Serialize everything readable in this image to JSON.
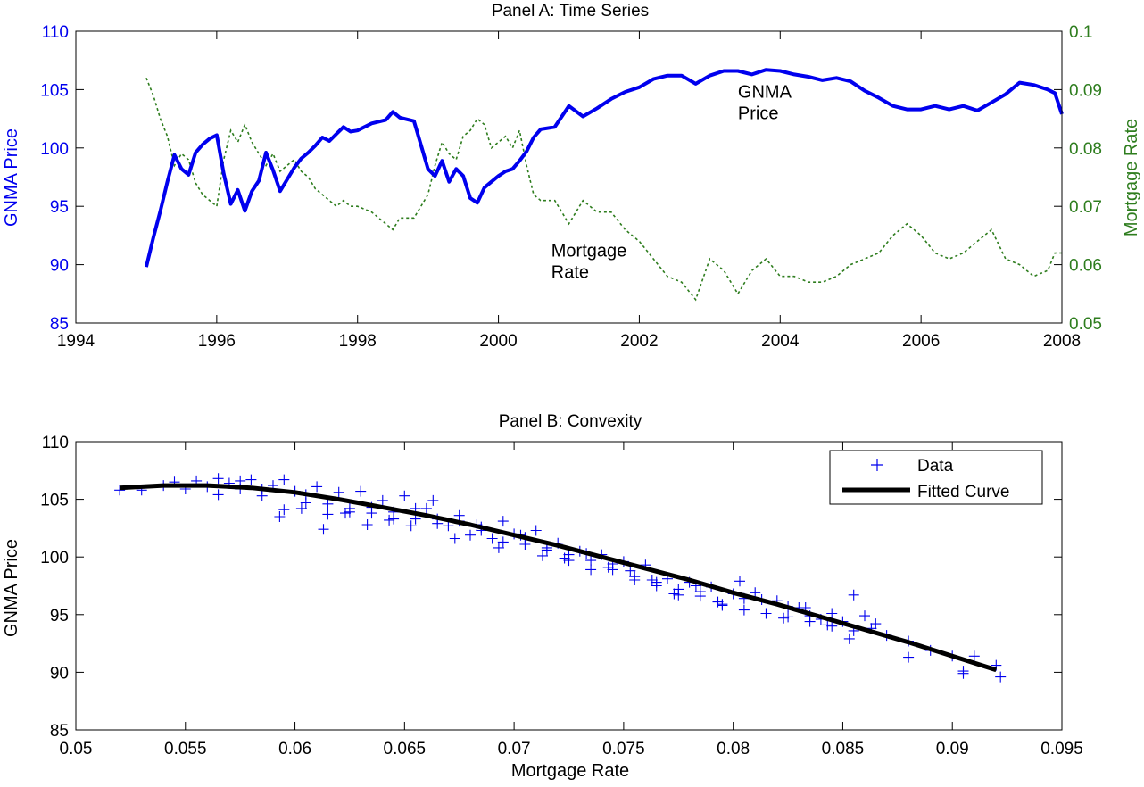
{
  "colors": {
    "price": "#0000ee",
    "rate": "#2e7d1e",
    "fit": "#000000",
    "axis": "#000000"
  },
  "chart_data": [
    {
      "type": "line",
      "title": "Panel A: Time Series",
      "xlabel": "",
      "ylabel_left": "GNMA Price",
      "ylabel_right": "Mortgage Rate",
      "xlim": [
        1994,
        2008
      ],
      "ylim_left": [
        85,
        110
      ],
      "ylim_right": [
        0.05,
        0.1
      ],
      "xticks": [
        "1994",
        "1996",
        "1998",
        "2000",
        "2002",
        "2004",
        "2006",
        "2008"
      ],
      "yticks_left": [
        "85",
        "90",
        "95",
        "100",
        "105",
        "110"
      ],
      "yticks_right": [
        "0.05",
        "0.06",
        "0.07",
        "0.08",
        "0.09",
        "0.1"
      ],
      "grid": false,
      "annotations": [
        {
          "text": [
            "GNMA",
            "Price"
          ],
          "x": 2003.4,
          "y": 104.3,
          "axis": "left"
        },
        {
          "text": [
            "Mortgage",
            "Rate"
          ],
          "x": 2000.75,
          "y": 90.7,
          "axis": "left"
        }
      ],
      "series": [
        {
          "axis": "left",
          "x": [
            1995.0,
            1995.1,
            1995.2,
            1995.3,
            1995.4,
            1995.5,
            1995.6,
            1995.7,
            1995.8,
            1995.9,
            1996.0,
            1996.1,
            1996.2,
            1996.3,
            1996.4,
            1996.5,
            1996.6,
            1996.7,
            1996.8,
            1996.9,
            1997.0,
            1997.1,
            1997.2,
            1997.3,
            1997.4,
            1997.5,
            1997.6,
            1997.7,
            1997.8,
            1997.9,
            1998.0,
            1998.2,
            1998.4,
            1998.5,
            1998.6,
            1998.8,
            1999.0,
            1999.1,
            1999.2,
            1999.3,
            1999.4,
            1999.5,
            1999.6,
            1999.7,
            1999.8,
            1999.9,
            2000.0,
            2000.1,
            2000.2,
            2000.3,
            2000.4,
            2000.5,
            2000.6,
            2000.8,
            2001.0,
            2001.2,
            2001.4,
            2001.6,
            2001.8,
            2002.0,
            2002.2,
            2002.4,
            2002.6,
            2002.8,
            2003.0,
            2003.2,
            2003.4,
            2003.6,
            2003.8,
            2004.0,
            2004.2,
            2004.4,
            2004.6,
            2004.8,
            2005.0,
            2005.2,
            2005.4,
            2005.6,
            2005.8,
            2006.0,
            2006.2,
            2006.4,
            2006.6,
            2006.8,
            2007.0,
            2007.2,
            2007.4,
            2007.6,
            2007.8,
            2007.9,
            2008.0
          ],
          "values": [
            89.8,
            92.3,
            94.6,
            97.1,
            99.4,
            98.2,
            97.7,
            99.6,
            100.3,
            100.8,
            101.1,
            97.8,
            95.2,
            96.4,
            94.6,
            96.3,
            97.2,
            99.6,
            98.1,
            96.3,
            97.3,
            98.3,
            99.1,
            99.6,
            100.2,
            100.9,
            100.6,
            101.2,
            101.8,
            101.4,
            101.5,
            102.1,
            102.4,
            103.1,
            102.6,
            102.3,
            98.2,
            97.6,
            98.9,
            97.1,
            98.2,
            97.6,
            95.7,
            95.3,
            96.6,
            97.1,
            97.6,
            98.0,
            98.2,
            98.9,
            99.7,
            100.9,
            101.6,
            101.8,
            103.6,
            102.7,
            103.4,
            104.2,
            104.8,
            105.2,
            105.9,
            106.2,
            106.2,
            105.5,
            106.2,
            106.6,
            106.6,
            106.3,
            106.7,
            106.6,
            106.3,
            106.1,
            105.8,
            106.0,
            105.7,
            104.9,
            104.3,
            103.6,
            103.3,
            103.3,
            103.6,
            103.3,
            103.6,
            103.2,
            103.9,
            104.6,
            105.6,
            105.4,
            105.0,
            104.7,
            102.9
          ]
        },
        {
          "axis": "right",
          "x": [
            1995.0,
            1995.1,
            1995.2,
            1995.3,
            1995.4,
            1995.5,
            1995.6,
            1995.7,
            1995.8,
            1995.9,
            1996.0,
            1996.1,
            1996.2,
            1996.3,
            1996.4,
            1996.5,
            1996.6,
            1996.7,
            1996.8,
            1996.9,
            1997.0,
            1997.1,
            1997.2,
            1997.3,
            1997.4,
            1997.5,
            1997.6,
            1997.7,
            1997.8,
            1997.9,
            1998.0,
            1998.2,
            1998.4,
            1998.5,
            1998.6,
            1998.8,
            1999.0,
            1999.1,
            1999.2,
            1999.3,
            1999.4,
            1999.5,
            1999.6,
            1999.7,
            1999.8,
            1999.9,
            2000.0,
            2000.1,
            2000.2,
            2000.3,
            2000.4,
            2000.5,
            2000.6,
            2000.8,
            2001.0,
            2001.2,
            2001.4,
            2001.6,
            2001.8,
            2002.0,
            2002.2,
            2002.4,
            2002.6,
            2002.8,
            2003.0,
            2003.2,
            2003.4,
            2003.6,
            2003.8,
            2004.0,
            2004.2,
            2004.4,
            2004.6,
            2004.8,
            2005.0,
            2005.2,
            2005.4,
            2005.6,
            2005.8,
            2006.0,
            2006.2,
            2006.4,
            2006.6,
            2006.8,
            2007.0,
            2007.2,
            2007.4,
            2007.6,
            2007.8,
            2007.9,
            2008.0
          ],
          "values": [
            0.092,
            0.089,
            0.085,
            0.082,
            0.077,
            0.079,
            0.078,
            0.074,
            0.072,
            0.071,
            0.07,
            0.078,
            0.083,
            0.081,
            0.084,
            0.081,
            0.079,
            0.077,
            0.079,
            0.076,
            0.077,
            0.078,
            0.076,
            0.075,
            0.073,
            0.072,
            0.071,
            0.07,
            0.071,
            0.07,
            0.07,
            0.069,
            0.067,
            0.066,
            0.068,
            0.068,
            0.072,
            0.077,
            0.081,
            0.079,
            0.078,
            0.082,
            0.083,
            0.085,
            0.084,
            0.08,
            0.081,
            0.082,
            0.08,
            0.083,
            0.077,
            0.072,
            0.071,
            0.071,
            0.067,
            0.071,
            0.069,
            0.069,
            0.066,
            0.064,
            0.061,
            0.058,
            0.057,
            0.054,
            0.061,
            0.059,
            0.055,
            0.059,
            0.061,
            0.058,
            0.058,
            0.057,
            0.057,
            0.058,
            0.06,
            0.061,
            0.062,
            0.065,
            0.067,
            0.065,
            0.062,
            0.061,
            0.062,
            0.064,
            0.066,
            0.061,
            0.06,
            0.058,
            0.059,
            0.062,
            0.062
          ]
        }
      ]
    },
    {
      "type": "scatter",
      "title": "Panel B: Convexity",
      "xlabel": "Mortgage Rate",
      "ylabel": "GNMA Price",
      "xlim": [
        0.05,
        0.095
      ],
      "ylim": [
        85,
        110
      ],
      "xticks": [
        "0.05",
        "0.055",
        "0.06",
        "0.065",
        "0.07",
        "0.075",
        "0.08",
        "0.085",
        "0.09",
        "0.095"
      ],
      "yticks": [
        "85",
        "90",
        "95",
        "100",
        "105",
        "110"
      ],
      "grid": false,
      "legend": {
        "placement": "top-right",
        "entries": [
          "Data",
          "Fitted Curve"
        ]
      },
      "fitted_curve": {
        "x": [
          0.052,
          0.054,
          0.056,
          0.058,
          0.06,
          0.062,
          0.064,
          0.066,
          0.068,
          0.07,
          0.072,
          0.074,
          0.076,
          0.078,
          0.08,
          0.082,
          0.084,
          0.086,
          0.088,
          0.09,
          0.092
        ],
        "values": [
          106.0,
          106.2,
          106.2,
          106.0,
          105.6,
          105.0,
          104.3,
          103.6,
          102.8,
          101.9,
          101.0,
          100.0,
          99.0,
          98.0,
          96.9,
          95.9,
          94.8,
          93.7,
          92.6,
          91.4,
          90.2
        ]
      },
      "scatter": {
        "x": [
          0.052,
          0.053,
          0.054,
          0.0545,
          0.055,
          0.0555,
          0.056,
          0.0565,
          0.057,
          0.0575,
          0.058,
          0.0585,
          0.059,
          0.0595,
          0.06,
          0.0605,
          0.061,
          0.0615,
          0.062,
          0.0625,
          0.063,
          0.0635,
          0.064,
          0.0645,
          0.065,
          0.0655,
          0.066,
          0.0665,
          0.067,
          0.0675,
          0.068,
          0.0685,
          0.069,
          0.0695,
          0.07,
          0.0705,
          0.071,
          0.0715,
          0.072,
          0.0725,
          0.073,
          0.0735,
          0.074,
          0.0745,
          0.075,
          0.0755,
          0.076,
          0.0765,
          0.077,
          0.0775,
          0.078,
          0.0785,
          0.079,
          0.0795,
          0.08,
          0.0805,
          0.081,
          0.0815,
          0.082,
          0.0825,
          0.083,
          0.0835,
          0.084,
          0.0845,
          0.085,
          0.0855,
          0.086,
          0.087,
          0.088,
          0.089,
          0.09,
          0.0905,
          0.091,
          0.092,
          0.0922,
          0.0565,
          0.0575,
          0.0585,
          0.0595,
          0.0605,
          0.0615,
          0.0625,
          0.0635,
          0.0645,
          0.0655,
          0.0665,
          0.0675,
          0.0685,
          0.0695,
          0.0705,
          0.0715,
          0.0725,
          0.0735,
          0.0745,
          0.0755,
          0.0765,
          0.0775,
          0.0785,
          0.0795,
          0.0805,
          0.0815,
          0.0825,
          0.0835,
          0.0845,
          0.0855,
          0.0865,
          0.0593,
          0.0603,
          0.0613,
          0.0623,
          0.0633,
          0.0643,
          0.0653,
          0.0663,
          0.0673,
          0.0683,
          0.0693,
          0.0703,
          0.0713,
          0.0723,
          0.0733,
          0.0743,
          0.0753,
          0.0763,
          0.0773,
          0.0783,
          0.0793,
          0.0803,
          0.0813,
          0.0823,
          0.0833,
          0.0843,
          0.0853,
          0.0863,
          0.088,
          0.0905
        ],
        "values": [
          105.8,
          105.8,
          106.2,
          106.5,
          105.9,
          106.6,
          106.1,
          106.8,
          106.4,
          106.6,
          106.7,
          105.9,
          106.2,
          106.7,
          105.7,
          105.4,
          106.1,
          104.6,
          105.6,
          104.2,
          105.7,
          103.8,
          104.9,
          103.9,
          105.3,
          103.3,
          104.2,
          103.3,
          102.7,
          103.6,
          101.9,
          102.6,
          101.6,
          103.1,
          102.0,
          101.1,
          102.3,
          100.6,
          101.2,
          100.2,
          100.5,
          99.7,
          100.2,
          98.9,
          99.6,
          98.3,
          99.3,
          97.8,
          98.1,
          97.2,
          97.8,
          96.6,
          97.4,
          95.9,
          96.8,
          95.4,
          96.9,
          95.1,
          96.2,
          94.8,
          95.6,
          94.4,
          94.6,
          94.0,
          94.4,
          96.7,
          94.9,
          93.2,
          92.7,
          91.9,
          91.4,
          89.9,
          91.4,
          90.6,
          89.6,
          105.4,
          105.9,
          105.3,
          104.1,
          104.7,
          103.7,
          103.9,
          104.3,
          103.3,
          104.2,
          102.9,
          103.1,
          102.3,
          101.3,
          101.7,
          100.8,
          99.7,
          98.9,
          99.4,
          98.0,
          97.5,
          96.7,
          97.0,
          95.8,
          96.4,
          95.1,
          95.7,
          94.9,
          95.1,
          93.6,
          94.2,
          103.5,
          104.2,
          102.4,
          103.8,
          102.8,
          103.2,
          102.7,
          104.9,
          101.6,
          102.8,
          100.8,
          101.9,
          100.1,
          99.9,
          100.3,
          99.1,
          98.8,
          98.0,
          96.8,
          97.5,
          96.1,
          97.9,
          96.3,
          94.7,
          95.6,
          94.1,
          92.9,
          93.8,
          91.3,
          90.1
        ]
      }
    }
  ]
}
